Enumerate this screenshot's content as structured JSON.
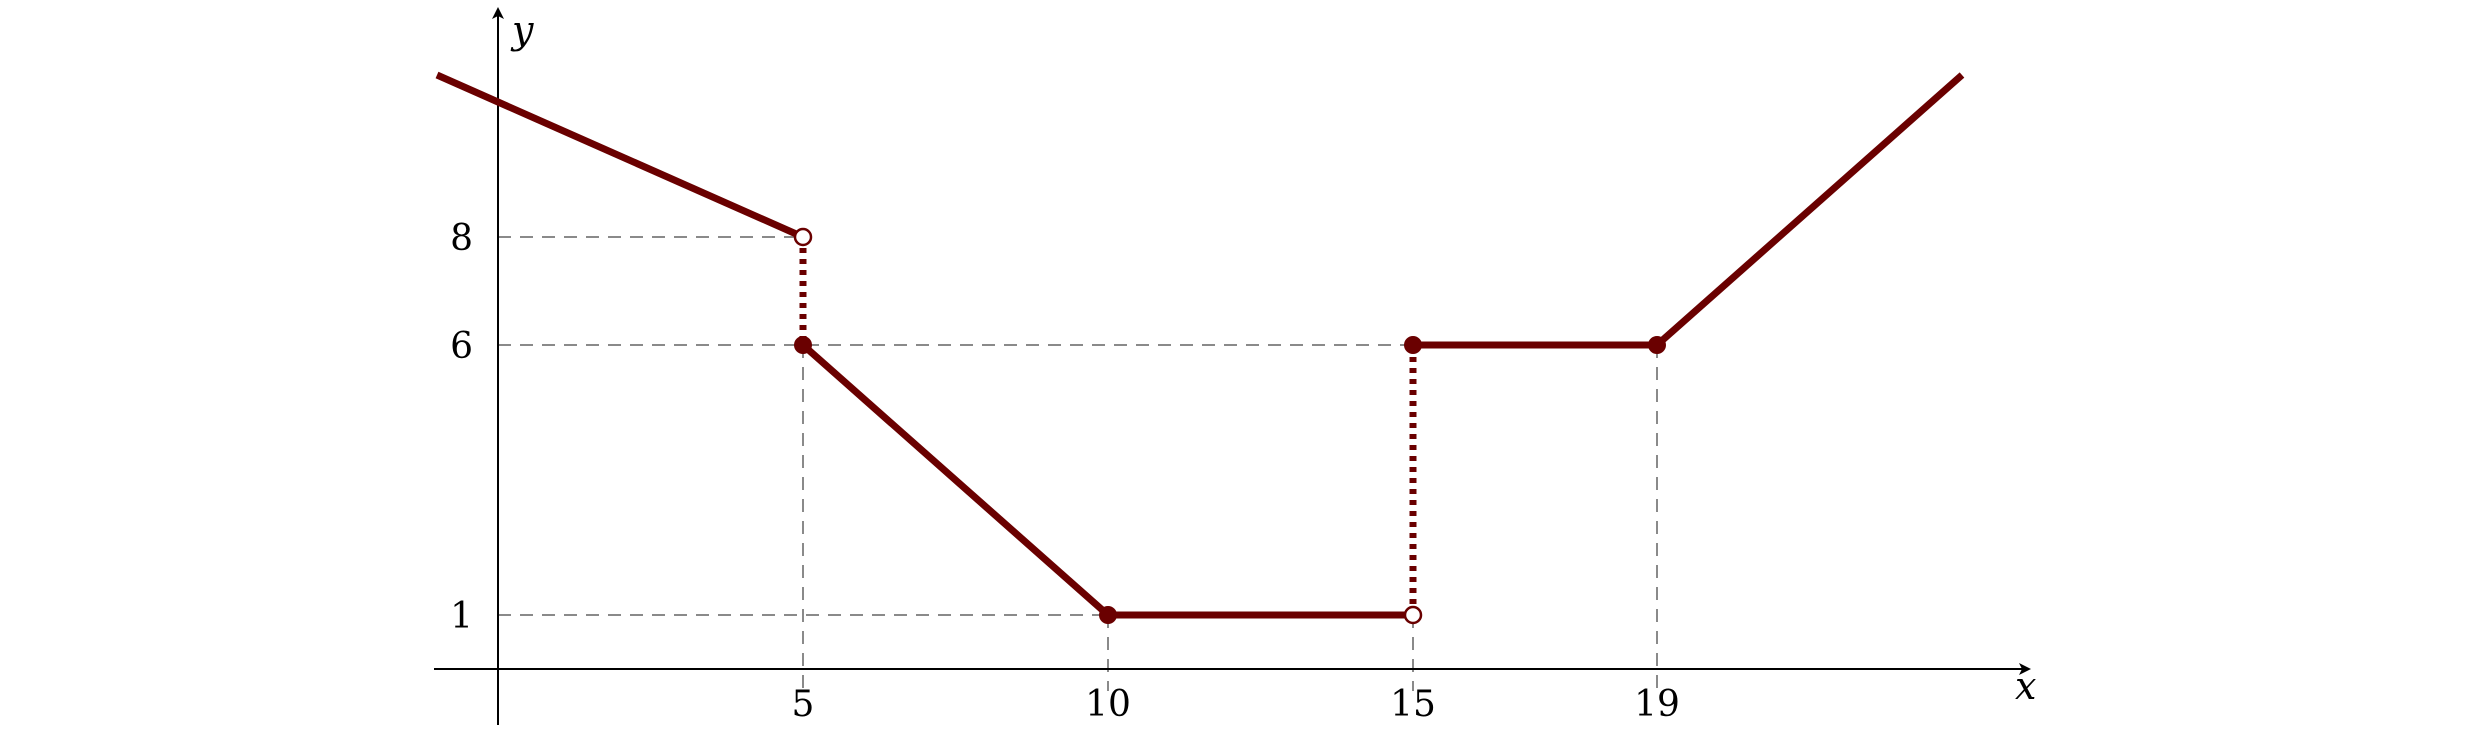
{
  "chart_data": {
    "type": "line",
    "title": "",
    "xlabel": "x",
    "ylabel": "y",
    "xlim": [
      -1,
      25
    ],
    "ylim": [
      -1,
      12
    ],
    "x_ticks": [
      "5",
      "10",
      "15",
      "19"
    ],
    "y_ticks": [
      "1",
      "6",
      "8"
    ],
    "x_tick_values": [
      5,
      10,
      15,
      19
    ],
    "y_tick_values": [
      1,
      6,
      8
    ],
    "grid": false,
    "colors": {
      "series": "#6a0000",
      "guides": "#8a8a8a",
      "axes": "#000000"
    },
    "segments": [
      {
        "x": [
          -1,
          5
        ],
        "y": [
          11,
          8
        ]
      },
      {
        "x": [
          5,
          10
        ],
        "y": [
          6,
          1
        ]
      },
      {
        "x": [
          10,
          15
        ],
        "y": [
          1,
          1
        ]
      },
      {
        "x": [
          15,
          19
        ],
        "y": [
          6,
          6
        ]
      },
      {
        "x": [
          19,
          24
        ],
        "y": [
          6,
          11
        ]
      }
    ],
    "jumps": [
      {
        "x": 5,
        "y": [
          8,
          6
        ]
      },
      {
        "x": 15,
        "y": [
          1,
          6
        ]
      }
    ],
    "points": [
      {
        "x": 5,
        "y": 8,
        "style": "open"
      },
      {
        "x": 5,
        "y": 6,
        "style": "filled"
      },
      {
        "x": 10,
        "y": 1,
        "style": "filled"
      },
      {
        "x": 15,
        "y": 1,
        "style": "open"
      },
      {
        "x": 15,
        "y": 6,
        "style": "filled"
      },
      {
        "x": 19,
        "y": 6,
        "style": "filled"
      }
    ],
    "guides": [
      {
        "x": 5,
        "y": 8,
        "to": "y-axis"
      },
      {
        "x": 15,
        "y": 6,
        "to": "y-axis"
      },
      {
        "x": 15,
        "y": 1,
        "to": "y-axis"
      },
      {
        "x": 5,
        "y": 6,
        "to": "x-axis"
      },
      {
        "x": 10,
        "y": 1,
        "to": "x-axis"
      },
      {
        "x": 15,
        "y": 1,
        "to": "x-axis"
      },
      {
        "x": 19,
        "y": 6,
        "to": "x-axis"
      }
    ]
  }
}
